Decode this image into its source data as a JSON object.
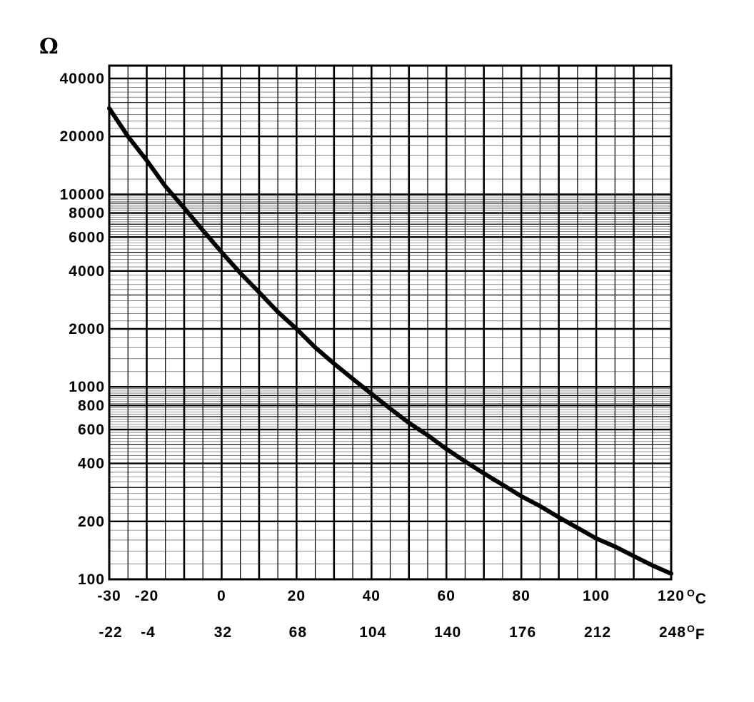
{
  "chart_data": {
    "type": "line",
    "ylabel": "Ω",
    "yscale": "log",
    "xlim": [
      -30,
      120
    ],
    "ylim": [
      100,
      40000
    ],
    "grid": true,
    "ytick_labels": [
      "40000",
      "20000",
      "10000",
      "8000",
      "6000",
      "4000",
      "2000",
      "1000",
      "800",
      "600",
      "400",
      "200",
      "100"
    ],
    "yticks": [
      40000,
      20000,
      10000,
      8000,
      6000,
      4000,
      2000,
      1000,
      800,
      600,
      400,
      200,
      100
    ],
    "xticks_c": [
      -30,
      -20,
      0,
      20,
      40,
      60,
      80,
      100,
      120
    ],
    "xtick_labels_c": [
      "-30",
      "-20",
      "0",
      "20",
      "40",
      "60",
      "80",
      "100",
      "120"
    ],
    "x_unit_c": "C",
    "xtick_labels_f": [
      "-22",
      "-4",
      "32",
      "68",
      "104",
      "140",
      "176",
      "212",
      "248"
    ],
    "x_unit_f": "F",
    "degree_symbol": "O",
    "series": [
      {
        "x": [
          -30,
          -25,
          -20,
          -15,
          -10,
          -5,
          0,
          5,
          10,
          15,
          20,
          25,
          30,
          35,
          40,
          45,
          50,
          55,
          60,
          65,
          70,
          75,
          80,
          85,
          90,
          95,
          100,
          105,
          110,
          115,
          120
        ],
        "y": [
          28000,
          20000,
          15000,
          11000,
          8500,
          6500,
          5000,
          3900,
          3100,
          2450,
          2000,
          1600,
          1320,
          1100,
          920,
          770,
          650,
          560,
          475,
          410,
          355,
          310,
          270,
          240,
          210,
          185,
          163,
          148,
          132,
          118,
          107
        ]
      }
    ]
  }
}
